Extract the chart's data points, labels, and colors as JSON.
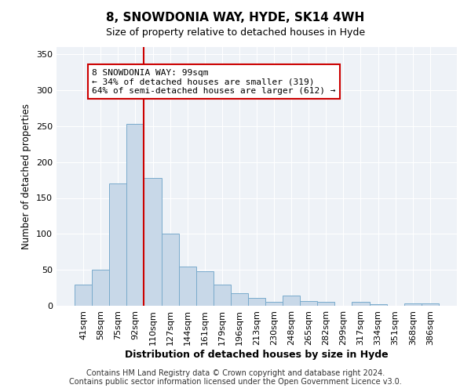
{
  "title": "8, SNOWDONIA WAY, HYDE, SK14 4WH",
  "subtitle": "Size of property relative to detached houses in Hyde",
  "xlabel": "Distribution of detached houses by size in Hyde",
  "ylabel": "Number of detached properties",
  "bar_color": "#c8d8e8",
  "bar_edge_color": "#7aabcc",
  "categories": [
    "41sqm",
    "58sqm",
    "75sqm",
    "92sqm",
    "110sqm",
    "127sqm",
    "144sqm",
    "161sqm",
    "179sqm",
    "196sqm",
    "213sqm",
    "230sqm",
    "248sqm",
    "265sqm",
    "282sqm",
    "299sqm",
    "317sqm",
    "334sqm",
    "351sqm",
    "368sqm",
    "386sqm"
  ],
  "values": [
    30,
    50,
    170,
    253,
    178,
    100,
    55,
    48,
    30,
    17,
    11,
    5,
    14,
    7,
    6,
    0,
    5,
    2,
    0,
    3,
    3
  ],
  "vline_pos": 3.5,
  "vline_color": "#cc0000",
  "annotation_line1": "8 SNOWDONIA WAY: 99sqm",
  "annotation_line2": "← 34% of detached houses are smaller (319)",
  "annotation_line3": "64% of semi-detached houses are larger (612) →",
  "annotation_box_color": "white",
  "annotation_box_edge": "#cc0000",
  "ylim": [
    0,
    360
  ],
  "yticks": [
    0,
    50,
    100,
    150,
    200,
    250,
    300,
    350
  ],
  "footer1": "Contains HM Land Registry data © Crown copyright and database right 2024.",
  "footer2": "Contains public sector information licensed under the Open Government Licence v3.0.",
  "bg_color": "#eef2f7",
  "grid_color": "#ffffff",
  "title_fontsize": 11,
  "subtitle_fontsize": 9,
  "xlabel_fontsize": 9,
  "ylabel_fontsize": 8.5,
  "tick_fontsize": 8,
  "annotation_fontsize": 8,
  "footer_fontsize": 7
}
